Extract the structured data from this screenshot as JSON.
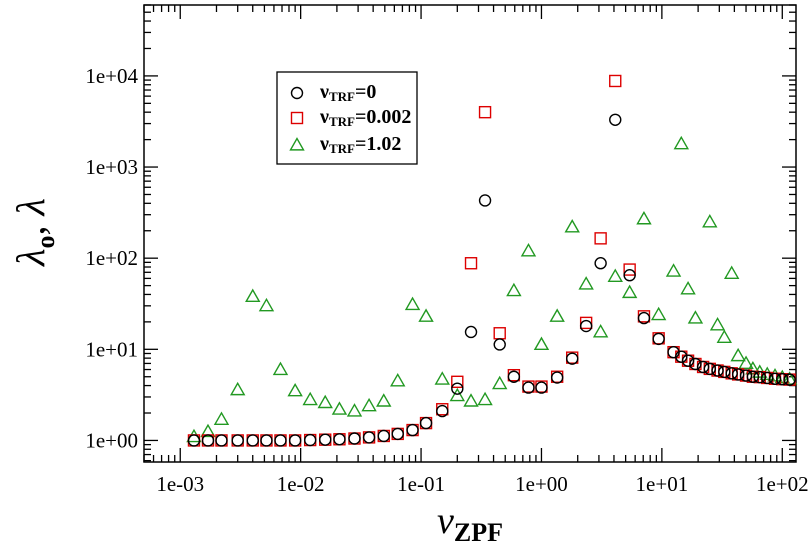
{
  "chart_data": {
    "type": "scatter",
    "title": "",
    "x_scale": "log",
    "y_scale": "log",
    "xlim": [
      0.0005,
      130
    ],
    "ylim": [
      0.58,
      60000
    ],
    "grid": false,
    "legend_position": "upper-left",
    "xlabel": {
      "main": "ν",
      "sub": "ZPF"
    },
    "ylabel": {
      "main1": "λ",
      "sub1": "o",
      "mid": ", ",
      "main2": "λ"
    },
    "x_ticks": [
      {
        "value": 0.001,
        "label": "1e-03"
      },
      {
        "value": 0.01,
        "label": "1e-02"
      },
      {
        "value": 0.1,
        "label": "1e-01"
      },
      {
        "value": 1,
        "label": "1e+00"
      },
      {
        "value": 10,
        "label": "1e+01"
      },
      {
        "value": 100,
        "label": "1e+02"
      }
    ],
    "y_ticks": [
      {
        "value": 1,
        "label": "1e+00"
      },
      {
        "value": 10,
        "label": "1e+01"
      },
      {
        "value": 100,
        "label": "1e+02"
      },
      {
        "value": 1000,
        "label": "1e+03"
      },
      {
        "value": 10000,
        "label": "1e+04"
      }
    ],
    "series": [
      {
        "name_main": "ν",
        "name_sub": "TRF",
        "name_rest": "=0",
        "marker": "circle",
        "color": "#000000",
        "points": [
          [
            0.0013,
            1.0
          ],
          [
            0.0017,
            1.0
          ],
          [
            0.0022,
            1.0
          ],
          [
            0.003,
            1.0
          ],
          [
            0.004,
            1.0
          ],
          [
            0.0052,
            1.0
          ],
          [
            0.0068,
            1.0
          ],
          [
            0.009,
            1.0
          ],
          [
            0.012,
            1.01
          ],
          [
            0.016,
            1.02
          ],
          [
            0.021,
            1.03
          ],
          [
            0.028,
            1.05
          ],
          [
            0.037,
            1.08
          ],
          [
            0.049,
            1.12
          ],
          [
            0.064,
            1.18
          ],
          [
            0.085,
            1.3
          ],
          [
            0.11,
            1.55
          ],
          [
            0.15,
            2.1
          ],
          [
            0.2,
            3.7
          ],
          [
            0.26,
            15.5
          ],
          [
            0.34,
            430
          ],
          [
            0.45,
            11.3
          ],
          [
            0.59,
            5.0
          ],
          [
            0.78,
            3.8
          ],
          [
            1.0,
            3.8
          ],
          [
            1.35,
            4.9
          ],
          [
            1.8,
            7.9
          ],
          [
            2.35,
            18
          ],
          [
            3.1,
            88
          ],
          [
            4.1,
            3300
          ],
          [
            5.4,
            65
          ],
          [
            7.1,
            22
          ],
          [
            9.4,
            13
          ],
          [
            12.5,
            9.3
          ],
          [
            14.5,
            8.3
          ],
          [
            16.5,
            7.5
          ],
          [
            19,
            6.9
          ],
          [
            22,
            6.4
          ],
          [
            25,
            6.1
          ],
          [
            29,
            5.85
          ],
          [
            33,
            5.65
          ],
          [
            38,
            5.45
          ],
          [
            43,
            5.3
          ],
          [
            50,
            5.15
          ],
          [
            57,
            5.0
          ],
          [
            65,
            4.95
          ],
          [
            75,
            4.85
          ],
          [
            87,
            4.75
          ],
          [
            100,
            4.7
          ],
          [
            115,
            4.65
          ]
        ]
      },
      {
        "name_main": "ν",
        "name_sub": "TRF",
        "name_rest": "=0.002",
        "marker": "square",
        "color": "#dd0000",
        "points": [
          [
            0.0013,
            1.0
          ],
          [
            0.0017,
            1.0
          ],
          [
            0.0022,
            1.0
          ],
          [
            0.003,
            1.0
          ],
          [
            0.004,
            1.0
          ],
          [
            0.0052,
            1.0
          ],
          [
            0.0068,
            1.0
          ],
          [
            0.009,
            1.0
          ],
          [
            0.012,
            1.01
          ],
          [
            0.016,
            1.02
          ],
          [
            0.021,
            1.03
          ],
          [
            0.028,
            1.05
          ],
          [
            0.037,
            1.08
          ],
          [
            0.049,
            1.12
          ],
          [
            0.064,
            1.18
          ],
          [
            0.085,
            1.3
          ],
          [
            0.11,
            1.55
          ],
          [
            0.15,
            2.2
          ],
          [
            0.2,
            4.4
          ],
          [
            0.26,
            88
          ],
          [
            0.34,
            4000
          ],
          [
            0.45,
            15
          ],
          [
            0.59,
            5.2
          ],
          [
            0.78,
            3.9
          ],
          [
            1.0,
            3.9
          ],
          [
            1.35,
            5.0
          ],
          [
            1.8,
            8.1
          ],
          [
            2.35,
            19.5
          ],
          [
            3.1,
            165
          ],
          [
            4.1,
            8800
          ],
          [
            5.4,
            75
          ],
          [
            7.1,
            23
          ],
          [
            9.4,
            13.2
          ],
          [
            12.5,
            9.3
          ],
          [
            14.5,
            8.3
          ],
          [
            16.5,
            7.5
          ],
          [
            19,
            6.9
          ],
          [
            22,
            6.4
          ],
          [
            25,
            6.1
          ],
          [
            29,
            5.85
          ],
          [
            33,
            5.65
          ],
          [
            38,
            5.45
          ],
          [
            43,
            5.3
          ],
          [
            50,
            5.15
          ],
          [
            57,
            5.0
          ],
          [
            65,
            4.95
          ],
          [
            75,
            4.85
          ],
          [
            87,
            4.75
          ],
          [
            100,
            4.7
          ],
          [
            115,
            4.65
          ]
        ]
      },
      {
        "name_main": "ν",
        "name_sub": "TRF",
        "name_rest": "=1.02",
        "marker": "triangle",
        "color": "#229922",
        "points": [
          [
            0.0013,
            1.1
          ],
          [
            0.0017,
            1.25
          ],
          [
            0.0022,
            1.7
          ],
          [
            0.003,
            3.6
          ],
          [
            0.004,
            38
          ],
          [
            0.0052,
            30
          ],
          [
            0.0068,
            6.0
          ],
          [
            0.009,
            3.5
          ],
          [
            0.012,
            2.8
          ],
          [
            0.016,
            2.6
          ],
          [
            0.021,
            2.2
          ],
          [
            0.028,
            2.1
          ],
          [
            0.037,
            2.4
          ],
          [
            0.049,
            2.7
          ],
          [
            0.064,
            4.5
          ],
          [
            0.085,
            31
          ],
          [
            0.11,
            23
          ],
          [
            0.15,
            4.7
          ],
          [
            0.2,
            3.1
          ],
          [
            0.26,
            2.7
          ],
          [
            0.34,
            2.8
          ],
          [
            0.45,
            4.2
          ],
          [
            0.59,
            44
          ],
          [
            0.78,
            120
          ],
          [
            1.0,
            11.3
          ],
          [
            1.35,
            23
          ],
          [
            1.8,
            220
          ],
          [
            2.35,
            52
          ],
          [
            3.1,
            15.5
          ],
          [
            4.1,
            63
          ],
          [
            5.4,
            42
          ],
          [
            7.1,
            270
          ],
          [
            9.4,
            24
          ],
          [
            12.5,
            72
          ],
          [
            14.5,
            1800
          ],
          [
            16.5,
            46
          ],
          [
            19,
            22
          ],
          [
            25,
            250
          ],
          [
            29,
            18.5
          ],
          [
            33,
            13.5
          ],
          [
            38,
            68
          ],
          [
            43,
            8.5
          ],
          [
            50,
            7.0
          ],
          [
            57,
            6.1
          ],
          [
            65,
            5.6
          ],
          [
            75,
            5.3
          ],
          [
            87,
            5.1
          ],
          [
            100,
            4.9
          ],
          [
            115,
            4.7
          ]
        ]
      }
    ]
  }
}
